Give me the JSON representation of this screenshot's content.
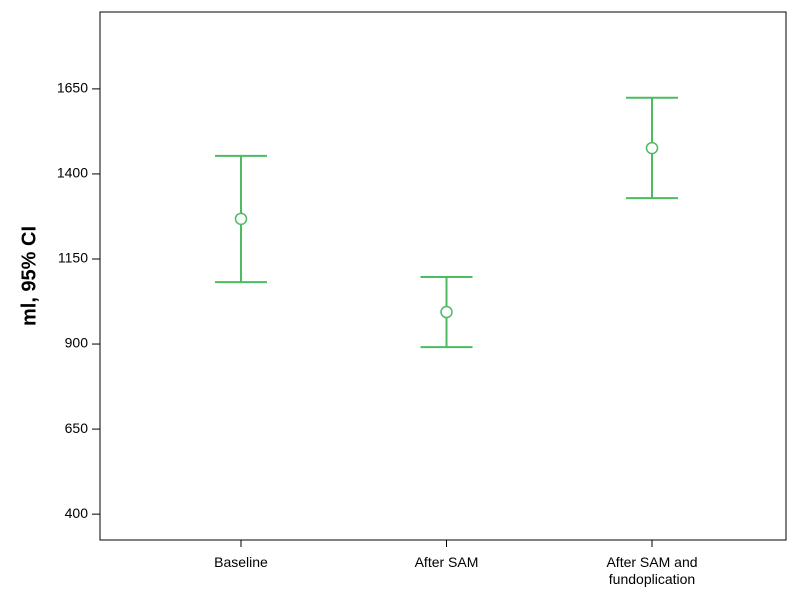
{
  "chart_data": {
    "type": "errorbar",
    "y_label": "ml, 95% CI",
    "categories": [
      "Baseline",
      "After SAM",
      "After SAM and fundoplication"
    ],
    "values": [
      1268,
      994,
      1476
    ],
    "lower": [
      1082,
      891,
      1329
    ],
    "upper": [
      1453,
      1097,
      1624
    ],
    "color": "#4dbb5f",
    "ylim": [
      324,
      1876
    ],
    "yticks": [
      400,
      650,
      900,
      1150,
      1400,
      1650
    ]
  }
}
